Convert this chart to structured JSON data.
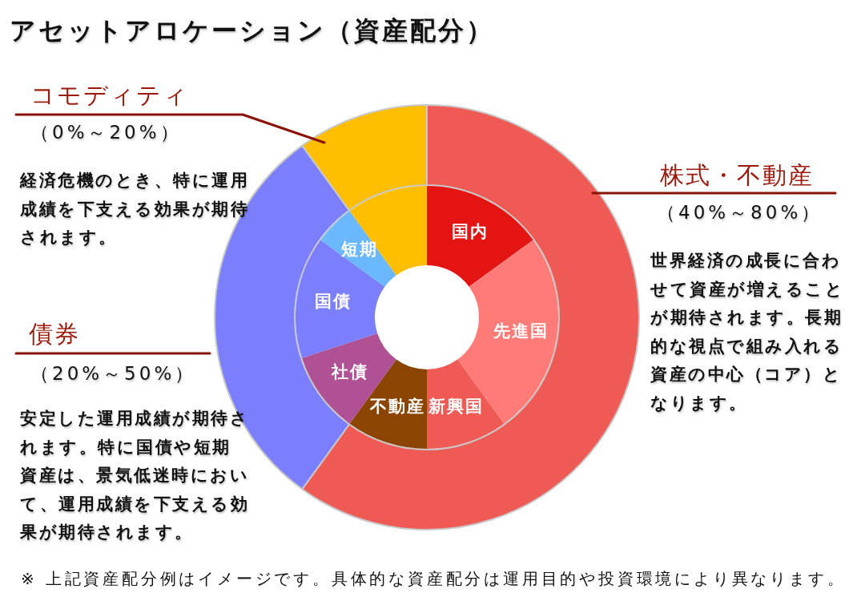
{
  "chart_data": [
    {
      "type": "donut",
      "title": "アセットアロケーション（資産配分）",
      "categories": [
        "株式・不動産",
        "債券",
        "コモディティ"
      ],
      "values": [
        60,
        30,
        10
      ],
      "colors": [
        "#f05a55",
        "#7b7ffe",
        "#ffbf00"
      ],
      "annotations": [
        "（0%～20%）",
        "経済危機のとき、特に運用成績を下支える効果が期待されます。",
        "（40%～80%）",
        "世界経済の成長に合わせて資産が増えることが期待されます。長期的な視点で組み入れる資産の中心（コア）となります。",
        "（20%～50%）",
        "安定した運用成績が期待されます。特に国債や短期資産は、景気低迷時において、運用成績を下支える効果が期待されます。",
        "※ 上記資産配分例はイメージです。具体的な資産配分は運用目的や投資環境により異なります。"
      ]
    },
    {
      "type": "donut",
      "categories": [
        "国内",
        "先進国",
        "新興国",
        "不動産",
        "社債",
        "国債",
        "短期",
        null
      ],
      "values": [
        15,
        25,
        10,
        10,
        10,
        15,
        5,
        10
      ],
      "colors": [
        "#e31412",
        "#ff7b78",
        "#f05a55",
        "#8b4500",
        "#b05095",
        "#7b7ffe",
        "#6ab8ff",
        "#ffbf00"
      ]
    }
  ]
}
